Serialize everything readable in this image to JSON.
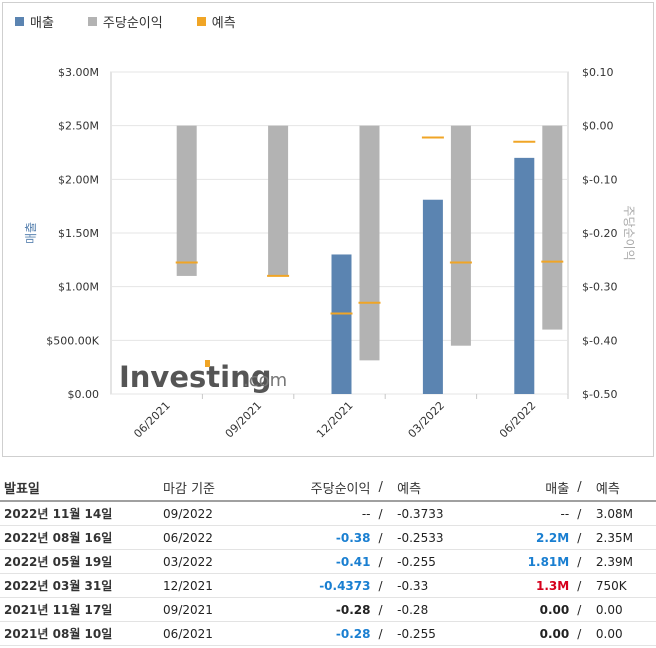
{
  "legend": [
    {
      "label": "매출",
      "color": "#5b84b1"
    },
    {
      "label": "주당순이익",
      "color": "#b3b3b3"
    },
    {
      "label": "예측",
      "color": "#f0a526"
    }
  ],
  "chart_data": {
    "type": "bar",
    "categories": [
      "06/2021",
      "09/2021",
      "12/2021",
      "03/2022",
      "06/2022"
    ],
    "series": [
      {
        "name": "매출",
        "axis": "left",
        "values": [
          0,
          0,
          1.3,
          1.81,
          2.2
        ],
        "unit": "M"
      },
      {
        "name": "주당순이익",
        "axis": "right",
        "values": [
          -0.28,
          -0.28,
          -0.4373,
          -0.41,
          -0.38
        ]
      }
    ],
    "forecasts": {
      "revenue": [
        null,
        null,
        0.75,
        null,
        2.35
      ],
      "eps": [
        -0.255,
        -0.28,
        -0.33,
        -0.255,
        -0.2533
      ]
    },
    "extra_forecast_marks": {
      "revenue_at": [
        3
      ],
      "revenue_values": [
        2.39
      ]
    },
    "ylabel_left": "매출",
    "ylabel_right": "주당순이익",
    "left_axis": {
      "min": 0,
      "max": 3.0,
      "ticks": [
        "$0.00",
        "$500.00K",
        "$1.00M",
        "$1.50M",
        "$2.00M",
        "$2.50M",
        "$3.00M"
      ]
    },
    "right_axis": {
      "min": -0.5,
      "max": 0.1,
      "ticks": [
        "$-0.50",
        "$-0.40",
        "$-0.30",
        "$-0.20",
        "$-0.10",
        "$0.00",
        "$0.10"
      ]
    },
    "grid": true,
    "legend_position": "top-left"
  },
  "watermark": {
    "brand": "Investing",
    "suffix": ".com"
  },
  "table": {
    "headers": {
      "date": "발표일",
      "period": "마감 기준",
      "eps": "주당순이익",
      "eps_slash": "/",
      "eps_forecast": "예측",
      "rev": "매출",
      "rev_slash": "/",
      "rev_forecast": "예측"
    },
    "rows": [
      {
        "date": "2022년 11월 14일",
        "period": "09/2022",
        "eps": "--",
        "eps_forecast": "-0.3733",
        "rev": "--",
        "rev_forecast": "3.08M",
        "eps_style": "plain",
        "rev_style": "plain"
      },
      {
        "date": "2022년 08월 16일",
        "period": "06/2022",
        "eps": "-0.38",
        "eps_forecast": "-0.2533",
        "rev": "2.2M",
        "rev_forecast": "2.35M",
        "eps_style": "pos-blue",
        "rev_style": "pos-blue"
      },
      {
        "date": "2022년 05월 19일",
        "period": "03/2022",
        "eps": "-0.41",
        "eps_forecast": "-0.255",
        "rev": "1.81M",
        "rev_forecast": "2.39M",
        "eps_style": "pos-blue",
        "rev_style": "pos-blue"
      },
      {
        "date": "2022년 03월 31일",
        "period": "12/2021",
        "eps": "-0.4373",
        "eps_forecast": "-0.33",
        "rev": "1.3M",
        "rev_forecast": "750K",
        "eps_style": "pos-blue",
        "rev_style": "neg-red"
      },
      {
        "date": "2021년 11월 17일",
        "period": "09/2021",
        "eps": "-0.28",
        "eps_forecast": "-0.28",
        "rev": "0.00",
        "rev_forecast": "0.00",
        "eps_style": "plain-b",
        "rev_style": "plain-b"
      },
      {
        "date": "2021년 08월 10일",
        "period": "06/2021",
        "eps": "-0.28",
        "eps_forecast": "-0.255",
        "rev": "0.00",
        "rev_forecast": "0.00",
        "eps_style": "pos-blue",
        "rev_style": "plain-b"
      }
    ]
  }
}
